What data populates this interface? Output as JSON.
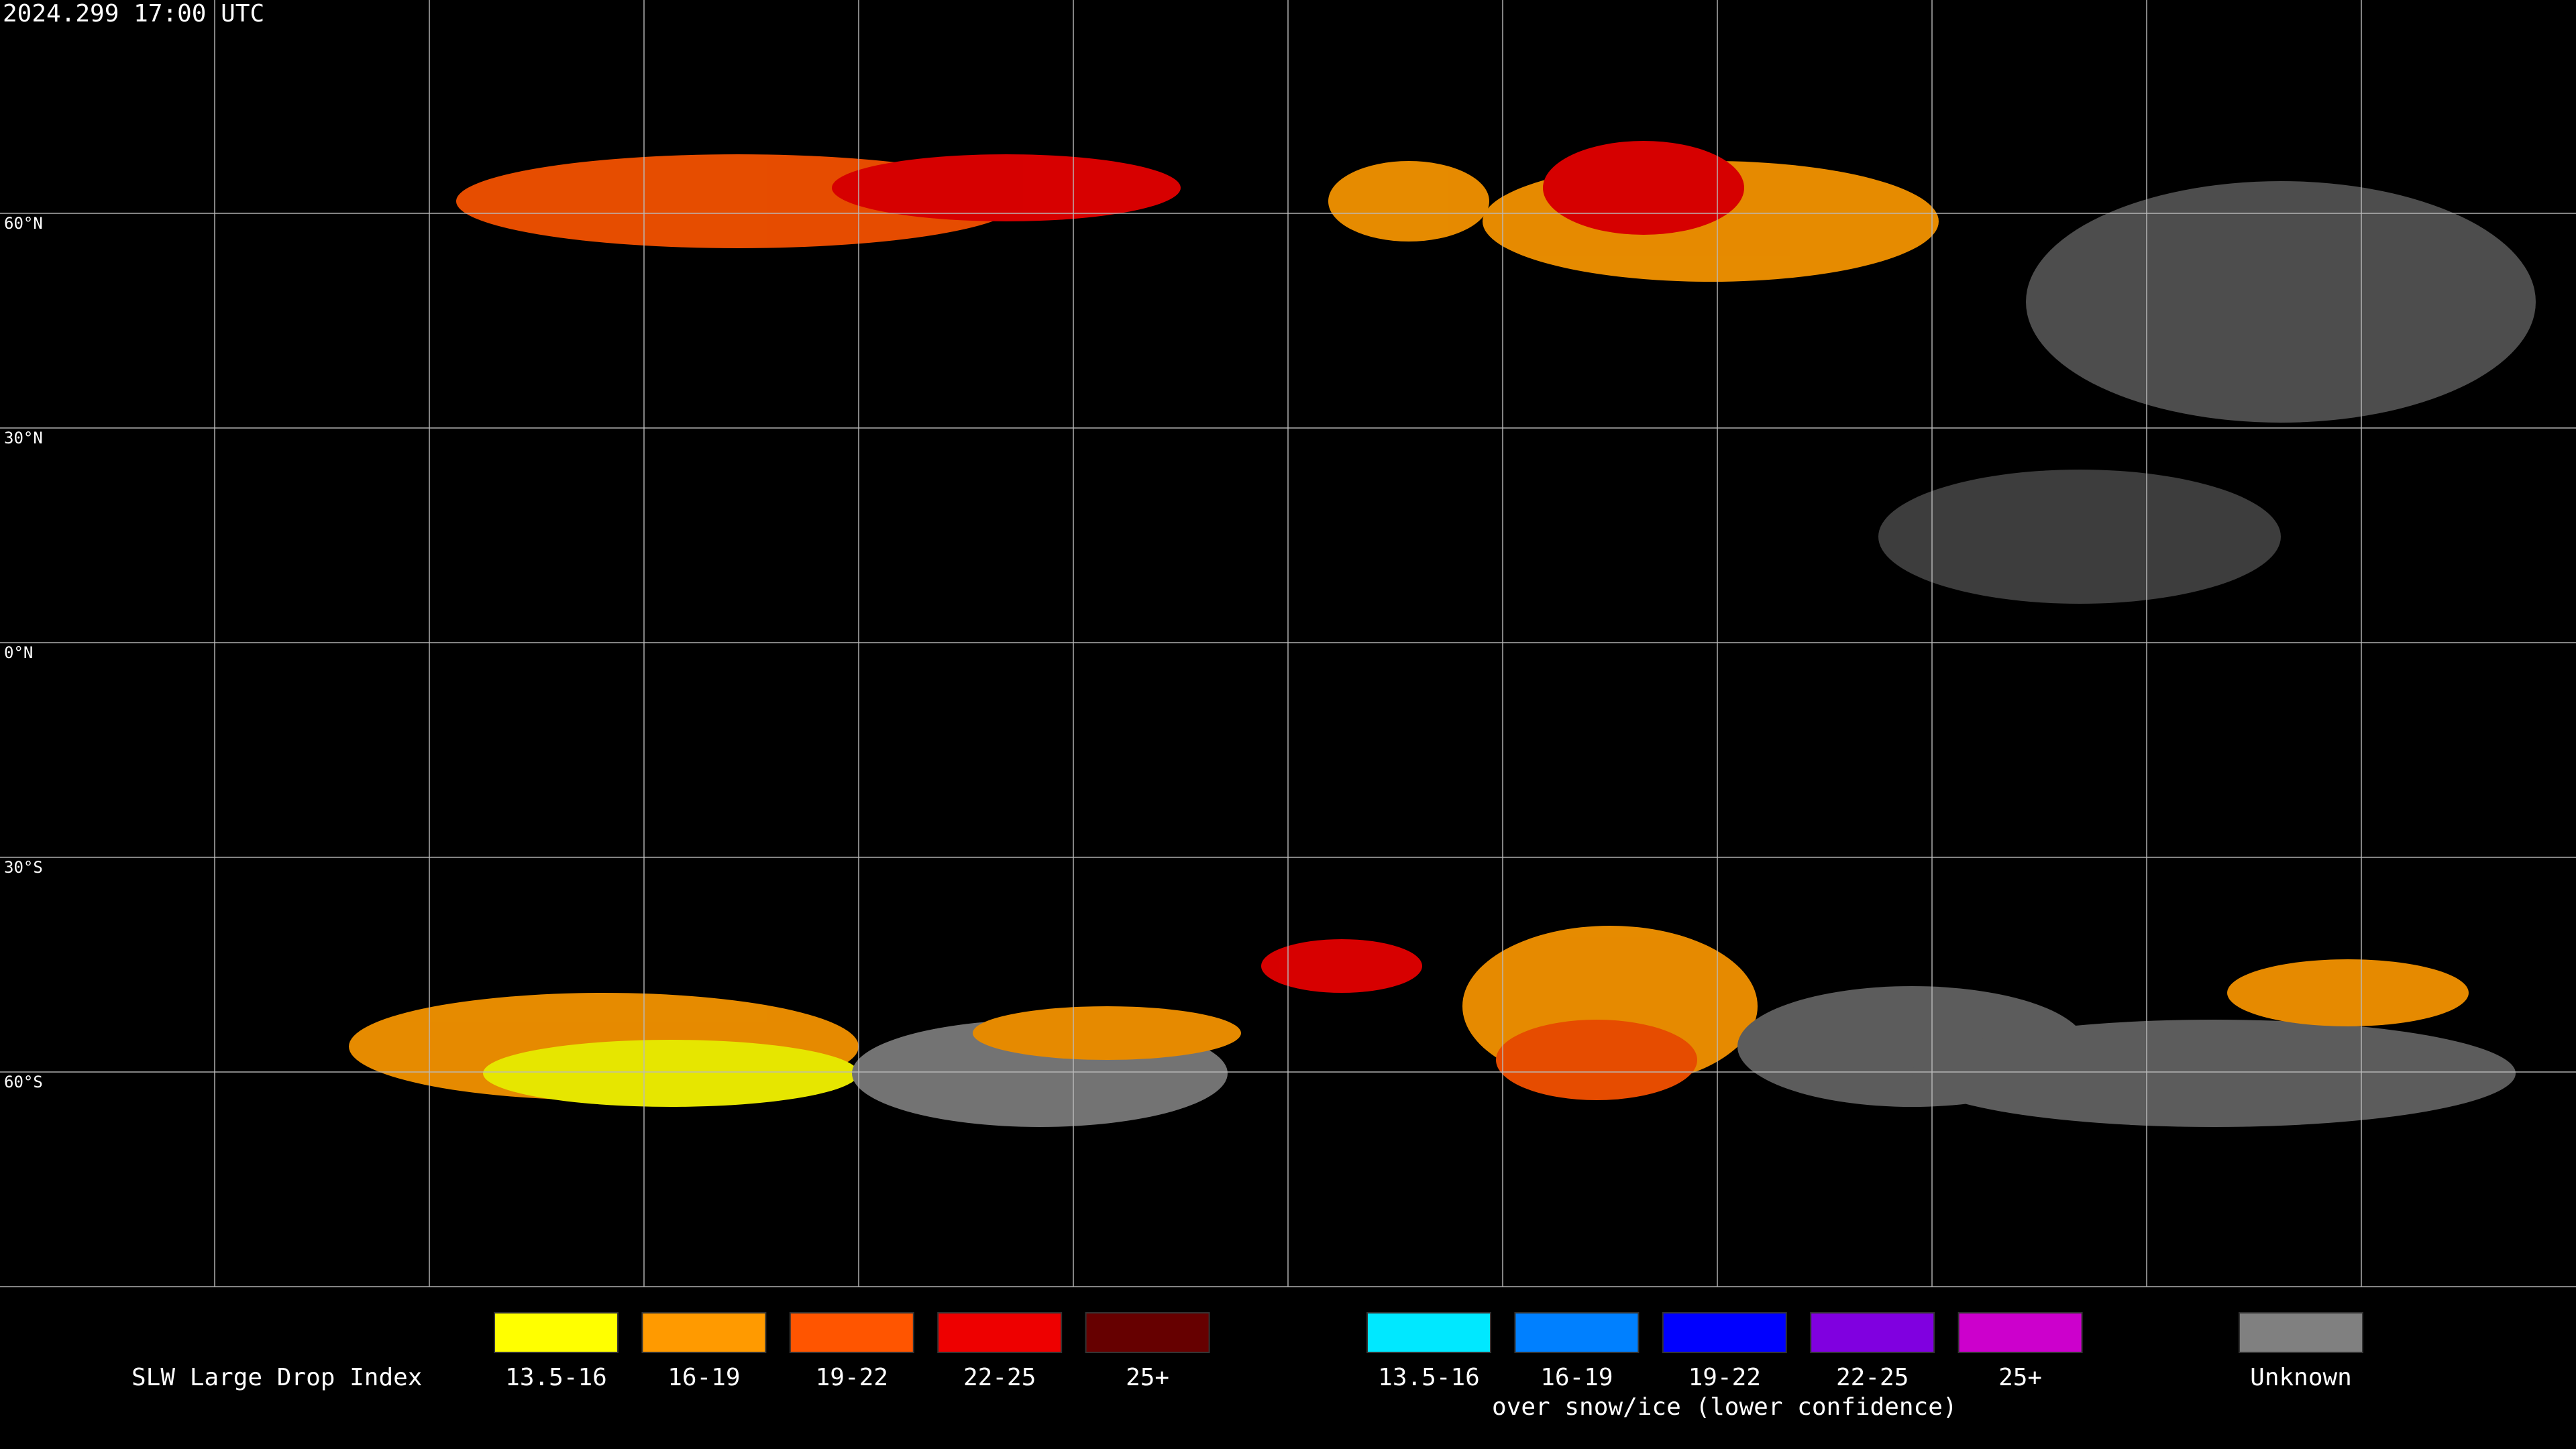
{
  "header": {
    "timestamp": "2024.299 17:00 UTC"
  },
  "map": {
    "latitude_labels": [
      "60°N",
      "30°N",
      "0°N",
      "30°S",
      "60°S"
    ]
  },
  "legend": {
    "title": "SLW Large Drop Index",
    "groups": [
      {
        "items": [
          {
            "label": "13.5-16",
            "color": "#ffff00"
          },
          {
            "label": "16-19",
            "color": "#ff9a00"
          },
          {
            "label": "19-22",
            "color": "#ff5500"
          },
          {
            "label": "22-25",
            "color": "#ee0000"
          },
          {
            "label": "25+",
            "color": "#660000"
          }
        ]
      },
      {
        "items": [
          {
            "label": "13.5-16",
            "color": "#00e8ff"
          },
          {
            "label": "16-19",
            "color": "#0080ff"
          },
          {
            "label": "19-22",
            "color": "#0000ff"
          },
          {
            "label": "22-25",
            "color": "#8000e0"
          },
          {
            "label": "25+",
            "color": "#cc00cc"
          }
        ],
        "caption": "over snow/ice (lower confidence)"
      },
      {
        "items": [
          {
            "label": "Unknown",
            "color": "#808080"
          }
        ]
      }
    ]
  }
}
